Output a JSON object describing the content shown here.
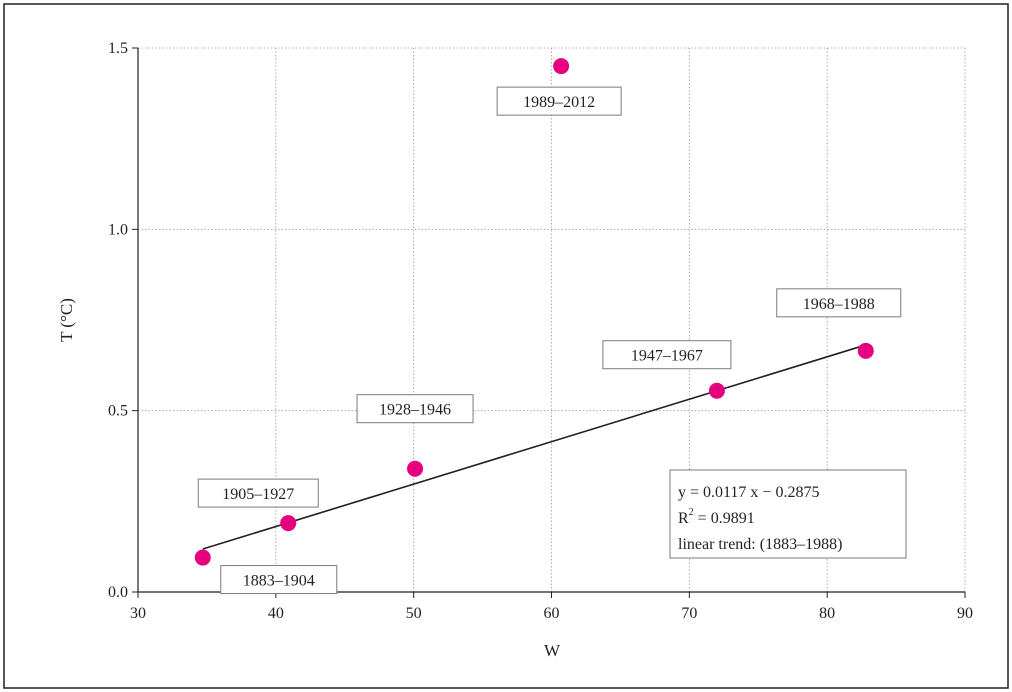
{
  "chart_data": {
    "type": "scatter",
    "xlabel": "W",
    "ylabel": "T (°C)",
    "xlim": [
      30,
      90
    ],
    "ylim": [
      0.0,
      1.5
    ],
    "xticks": [
      30,
      40,
      50,
      60,
      70,
      80,
      90
    ],
    "yticks": [
      0.0,
      0.5,
      1.0,
      1.5
    ],
    "ytick_labels": [
      "0.0",
      "0.5",
      "1.0",
      "1.5"
    ],
    "grid": true,
    "point_color": "#e5007d",
    "points": [
      {
        "x": 34.7,
        "y": 0.095,
        "label": "1883–1904"
      },
      {
        "x": 40.9,
        "y": 0.19,
        "label": "1905–1927"
      },
      {
        "x": 50.1,
        "y": 0.34,
        "label": "1928–1946"
      },
      {
        "x": 60.7,
        "y": 1.45,
        "label": "1989–2012"
      },
      {
        "x": 72.0,
        "y": 0.555,
        "label": "1947–1967"
      },
      {
        "x": 82.8,
        "y": 0.665,
        "label": "1968–1988"
      }
    ],
    "trendline": {
      "slope": 0.0117,
      "intercept": -0.2875,
      "x_range": [
        34.7,
        82.8
      ],
      "equation": "y = 0.0117 x − 0.2875",
      "r2_base": "R",
      "r2_sup": "2",
      "r2_value": " = 0.9891",
      "note": "linear trend: (1883–1988)"
    }
  }
}
